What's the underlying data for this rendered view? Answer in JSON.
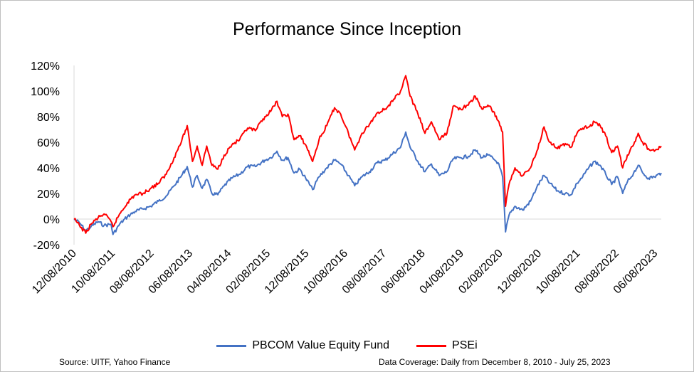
{
  "colors": {
    "fund": "#4472c4",
    "psei": "#ff0000",
    "axis": "#d9d9d9"
  },
  "footer": {
    "source": "Source: UITF, Yahoo Finance",
    "coverage": "Data Coverage: Daily from December 8, 2010 - July 25, 2023"
  },
  "chart_data": {
    "type": "line",
    "title": "Performance Since Inception",
    "xlabel": "",
    "ylabel": "",
    "ylim": [
      -0.2,
      1.2
    ],
    "yticks": [
      -0.2,
      0,
      0.2,
      0.4,
      0.6,
      0.8,
      1.0,
      1.2
    ],
    "ytick_labels": [
      "-20%",
      "0%",
      "20%",
      "40%",
      "60%",
      "80%",
      "100%",
      "120%"
    ],
    "xlim": [
      "2010-12-08",
      "2023-07-25"
    ],
    "xtick_labels": [
      "12/08/2010",
      "10/08/2011",
      "08/08/2012",
      "06/08/2013",
      "04/08/2014",
      "02/08/2015",
      "12/08/2015",
      "10/08/2016",
      "08/08/2017",
      "06/08/2018",
      "04/08/2019",
      "02/08/2020",
      "12/08/2020",
      "10/08/2021",
      "08/08/2022",
      "06/08/2023"
    ],
    "xticks": [
      "2010-12-08",
      "2011-10-08",
      "2012-08-08",
      "2013-06-08",
      "2014-04-08",
      "2015-02-08",
      "2015-12-08",
      "2016-10-08",
      "2017-08-08",
      "2018-06-08",
      "2019-04-08",
      "2020-02-08",
      "2020-12-08",
      "2021-10-08",
      "2022-08-08",
      "2023-06-08"
    ],
    "grid": false,
    "legend": "bottom",
    "series": [
      {
        "name": "PBCOM Value Equity Fund",
        "color": "#4472c4",
        "points": [
          [
            "2010-12-08",
            0.0
          ],
          [
            "2011-01-20",
            -0.03
          ],
          [
            "2011-03-10",
            -0.09
          ],
          [
            "2011-04-20",
            -0.06
          ],
          [
            "2011-06-15",
            -0.02
          ],
          [
            "2011-08-01",
            -0.05
          ],
          [
            "2011-09-25",
            -0.04
          ],
          [
            "2011-10-10",
            -0.12
          ],
          [
            "2011-12-01",
            -0.04
          ],
          [
            "2012-02-01",
            0.02
          ],
          [
            "2012-04-01",
            0.06
          ],
          [
            "2012-06-01",
            0.08
          ],
          [
            "2012-08-01",
            0.1
          ],
          [
            "2012-10-01",
            0.14
          ],
          [
            "2012-12-01",
            0.18
          ],
          [
            "2013-02-01",
            0.26
          ],
          [
            "2013-04-01",
            0.34
          ],
          [
            "2013-05-15",
            0.41
          ],
          [
            "2013-06-25",
            0.25
          ],
          [
            "2013-08-01",
            0.34
          ],
          [
            "2013-09-10",
            0.24
          ],
          [
            "2013-10-15",
            0.31
          ],
          [
            "2013-11-25",
            0.2
          ],
          [
            "2014-01-10",
            0.19
          ],
          [
            "2014-03-01",
            0.26
          ],
          [
            "2014-05-01",
            0.32
          ],
          [
            "2014-07-01",
            0.35
          ],
          [
            "2014-09-01",
            0.41
          ],
          [
            "2014-11-01",
            0.41
          ],
          [
            "2015-01-15",
            0.46
          ],
          [
            "2015-03-01",
            0.48
          ],
          [
            "2015-04-20",
            0.53
          ],
          [
            "2015-06-01",
            0.46
          ],
          [
            "2015-07-15",
            0.48
          ],
          [
            "2015-09-01",
            0.36
          ],
          [
            "2015-10-15",
            0.39
          ],
          [
            "2015-12-01",
            0.32
          ],
          [
            "2016-01-25",
            0.23
          ],
          [
            "2016-03-15",
            0.33
          ],
          [
            "2016-05-15",
            0.4
          ],
          [
            "2016-07-15",
            0.46
          ],
          [
            "2016-09-01",
            0.43
          ],
          [
            "2016-11-01",
            0.34
          ],
          [
            "2016-12-20",
            0.26
          ],
          [
            "2017-02-15",
            0.33
          ],
          [
            "2017-04-15",
            0.37
          ],
          [
            "2017-06-15",
            0.44
          ],
          [
            "2017-08-15",
            0.46
          ],
          [
            "2017-10-15",
            0.51
          ],
          [
            "2017-12-15",
            0.56
          ],
          [
            "2018-01-25",
            0.68
          ],
          [
            "2018-03-01",
            0.56
          ],
          [
            "2018-05-01",
            0.45
          ],
          [
            "2018-06-25",
            0.37
          ],
          [
            "2018-08-15",
            0.43
          ],
          [
            "2018-10-15",
            0.34
          ],
          [
            "2018-12-15",
            0.37
          ],
          [
            "2019-02-01",
            0.47
          ],
          [
            "2019-04-01",
            0.48
          ],
          [
            "2019-06-01",
            0.49
          ],
          [
            "2019-07-25",
            0.54
          ],
          [
            "2019-09-15",
            0.48
          ],
          [
            "2019-11-01",
            0.5
          ],
          [
            "2019-12-15",
            0.47
          ],
          [
            "2020-01-20",
            0.44
          ],
          [
            "2020-02-25",
            0.33
          ],
          [
            "2020-03-19",
            -0.1
          ],
          [
            "2020-04-15",
            0.03
          ],
          [
            "2020-06-01",
            0.1
          ],
          [
            "2020-08-01",
            0.07
          ],
          [
            "2020-10-01",
            0.14
          ],
          [
            "2020-11-20",
            0.25
          ],
          [
            "2021-01-15",
            0.34
          ],
          [
            "2021-03-01",
            0.28
          ],
          [
            "2021-05-01",
            0.22
          ],
          [
            "2021-07-01",
            0.2
          ],
          [
            "2021-08-15",
            0.19
          ],
          [
            "2021-10-01",
            0.28
          ],
          [
            "2021-11-15",
            0.33
          ],
          [
            "2022-01-01",
            0.4
          ],
          [
            "2022-02-15",
            0.45
          ],
          [
            "2022-04-01",
            0.42
          ],
          [
            "2022-05-15",
            0.35
          ],
          [
            "2022-07-01",
            0.27
          ],
          [
            "2022-08-15",
            0.33
          ],
          [
            "2022-09-25",
            0.2
          ],
          [
            "2022-11-01",
            0.29
          ],
          [
            "2022-12-20",
            0.36
          ],
          [
            "2023-01-25",
            0.42
          ],
          [
            "2023-03-01",
            0.36
          ],
          [
            "2023-04-15",
            0.32
          ],
          [
            "2023-06-01",
            0.33
          ],
          [
            "2023-07-25",
            0.36
          ]
        ]
      },
      {
        "name": "PSEi",
        "color": "#ff0000",
        "points": [
          [
            "2010-12-08",
            0.0
          ],
          [
            "2011-01-20",
            -0.05
          ],
          [
            "2011-03-10",
            -0.11
          ],
          [
            "2011-04-20",
            -0.04
          ],
          [
            "2011-06-15",
            0.01
          ],
          [
            "2011-08-01",
            0.04
          ],
          [
            "2011-09-25",
            -0.02
          ],
          [
            "2011-10-10",
            -0.06
          ],
          [
            "2011-12-01",
            0.04
          ],
          [
            "2012-02-01",
            0.13
          ],
          [
            "2012-04-01",
            0.19
          ],
          [
            "2012-06-01",
            0.2
          ],
          [
            "2012-08-01",
            0.24
          ],
          [
            "2012-10-01",
            0.28
          ],
          [
            "2012-12-01",
            0.35
          ],
          [
            "2013-02-01",
            0.48
          ],
          [
            "2013-04-01",
            0.61
          ],
          [
            "2013-05-15",
            0.73
          ],
          [
            "2013-06-25",
            0.45
          ],
          [
            "2013-08-01",
            0.57
          ],
          [
            "2013-09-10",
            0.42
          ],
          [
            "2013-10-15",
            0.57
          ],
          [
            "2013-11-25",
            0.42
          ],
          [
            "2014-01-10",
            0.39
          ],
          [
            "2014-03-01",
            0.5
          ],
          [
            "2014-05-01",
            0.58
          ],
          [
            "2014-07-01",
            0.62
          ],
          [
            "2014-09-01",
            0.71
          ],
          [
            "2014-11-01",
            0.69
          ],
          [
            "2015-01-15",
            0.8
          ],
          [
            "2015-03-01",
            0.84
          ],
          [
            "2015-04-20",
            0.92
          ],
          [
            "2015-06-01",
            0.8
          ],
          [
            "2015-07-15",
            0.82
          ],
          [
            "2015-09-01",
            0.62
          ],
          [
            "2015-10-15",
            0.65
          ],
          [
            "2015-12-01",
            0.58
          ],
          [
            "2016-01-25",
            0.45
          ],
          [
            "2016-03-15",
            0.62
          ],
          [
            "2016-05-15",
            0.73
          ],
          [
            "2016-07-15",
            0.87
          ],
          [
            "2016-09-01",
            0.82
          ],
          [
            "2016-11-01",
            0.67
          ],
          [
            "2016-12-20",
            0.54
          ],
          [
            "2017-02-15",
            0.67
          ],
          [
            "2017-04-15",
            0.74
          ],
          [
            "2017-06-15",
            0.83
          ],
          [
            "2017-08-15",
            0.86
          ],
          [
            "2017-10-15",
            0.92
          ],
          [
            "2017-12-15",
            1.0
          ],
          [
            "2018-01-25",
            1.12
          ],
          [
            "2018-03-01",
            0.96
          ],
          [
            "2018-05-01",
            0.82
          ],
          [
            "2018-06-25",
            0.67
          ],
          [
            "2018-08-15",
            0.76
          ],
          [
            "2018-10-15",
            0.62
          ],
          [
            "2018-12-15",
            0.67
          ],
          [
            "2019-02-01",
            0.88
          ],
          [
            "2019-04-01",
            0.86
          ],
          [
            "2019-06-01",
            0.89
          ],
          [
            "2019-07-25",
            0.96
          ],
          [
            "2019-09-15",
            0.86
          ],
          [
            "2019-11-01",
            0.89
          ],
          [
            "2019-12-15",
            0.84
          ],
          [
            "2020-01-20",
            0.77
          ],
          [
            "2020-02-25",
            0.68
          ],
          [
            "2020-03-19",
            0.1
          ],
          [
            "2020-04-15",
            0.27
          ],
          [
            "2020-06-01",
            0.4
          ],
          [
            "2020-08-01",
            0.34
          ],
          [
            "2020-10-01",
            0.4
          ],
          [
            "2020-11-20",
            0.53
          ],
          [
            "2021-01-15",
            0.72
          ],
          [
            "2021-03-01",
            0.6
          ],
          [
            "2021-05-01",
            0.55
          ],
          [
            "2021-07-01",
            0.59
          ],
          [
            "2021-08-15",
            0.56
          ],
          [
            "2021-10-01",
            0.67
          ],
          [
            "2021-11-15",
            0.71
          ],
          [
            "2022-01-01",
            0.72
          ],
          [
            "2022-02-15",
            0.76
          ],
          [
            "2022-04-01",
            0.73
          ],
          [
            "2022-05-15",
            0.65
          ],
          [
            "2022-07-01",
            0.52
          ],
          [
            "2022-08-15",
            0.57
          ],
          [
            "2022-09-25",
            0.4
          ],
          [
            "2022-11-01",
            0.5
          ],
          [
            "2022-12-20",
            0.58
          ],
          [
            "2023-01-25",
            0.67
          ],
          [
            "2023-03-01",
            0.6
          ],
          [
            "2023-04-15",
            0.55
          ],
          [
            "2023-06-01",
            0.53
          ],
          [
            "2023-07-25",
            0.57
          ]
        ]
      }
    ]
  }
}
